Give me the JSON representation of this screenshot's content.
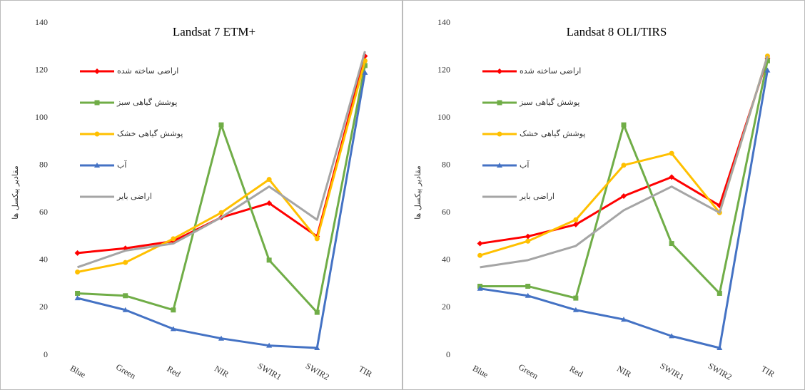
{
  "chart_data": [
    {
      "type": "line",
      "title": "Landsat 7 ETM+",
      "y_label": "مقادیر پیکسل ها",
      "categories": [
        "Blue",
        "Green",
        "Red",
        "NIR",
        "SWIR1",
        "SWIR2",
        "TIR"
      ],
      "ylim": [
        0,
        140
      ],
      "yticks": [
        0,
        20,
        40,
        60,
        80,
        100,
        120,
        140
      ],
      "grid": false,
      "legend": "upper-left",
      "series": [
        {
          "name": "اراضی ساخته شده",
          "color": "#ff0000",
          "values": [
            43,
            45,
            48,
            58,
            64,
            50,
            126
          ]
        },
        {
          "name": "پوشش گیاهی سبز",
          "color": "#70ad47",
          "values": [
            26,
            25,
            19,
            97,
            40,
            18,
            122
          ]
        },
        {
          "name": "پوشش گیاهی خشک",
          "color": "#ffc000",
          "values": [
            35,
            39,
            49,
            60,
            74,
            49,
            124
          ]
        },
        {
          "name": "آب",
          "color": "#4472c4",
          "values": [
            24,
            19,
            11,
            7,
            4,
            3,
            119
          ]
        },
        {
          "name": "اراضی بایر",
          "color": "#a5a5a5",
          "values": [
            37,
            44,
            47,
            58,
            71,
            57,
            128
          ]
        }
      ]
    },
    {
      "type": "line",
      "title": "Landsat 8 OLI/TIRS",
      "y_label": "مقادیر پیکسل ها",
      "categories": [
        "Blue",
        "Green",
        "Red",
        "NIR",
        "SWIR1",
        "SWIR2",
        "TIR"
      ],
      "ylim": [
        0,
        140
      ],
      "yticks": [
        0,
        20,
        40,
        60,
        80,
        100,
        120,
        140
      ],
      "grid": false,
      "legend": "upper-left",
      "series": [
        {
          "name": "اراضی ساخته شده",
          "color": "#ff0000",
          "values": [
            47,
            50,
            55,
            67,
            75,
            63,
            125
          ]
        },
        {
          "name": "پوشش گیاهی سبز",
          "color": "#70ad47",
          "values": [
            29,
            29,
            24,
            97,
            47,
            26,
            124
          ]
        },
        {
          "name": "پوشش گیاهی خشک",
          "color": "#ffc000",
          "values": [
            42,
            48,
            57,
            80,
            85,
            60,
            126
          ]
        },
        {
          "name": "آب",
          "color": "#4472c4",
          "values": [
            28,
            25,
            19,
            15,
            8,
            3,
            120
          ]
        },
        {
          "name": "اراضی بایر",
          "color": "#a5a5a5",
          "values": [
            37,
            40,
            46,
            61,
            71,
            60,
            126
          ]
        }
      ]
    }
  ]
}
